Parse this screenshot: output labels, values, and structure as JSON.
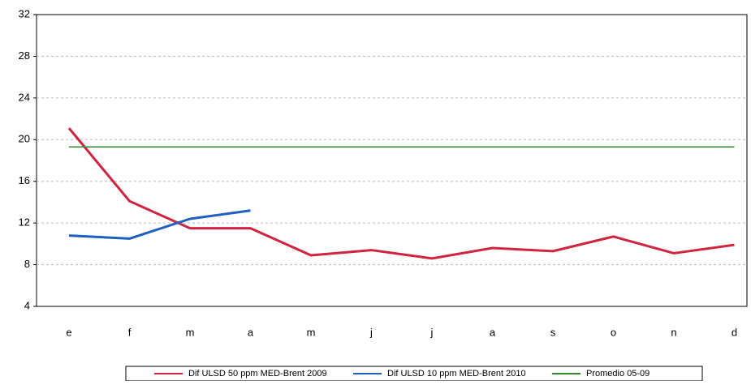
{
  "chart_data": {
    "type": "line",
    "categories": [
      "e",
      "f",
      "m",
      "a",
      "m",
      "j",
      "j",
      "a",
      "s",
      "o",
      "n",
      "d"
    ],
    "series": [
      {
        "name": "Dif ULSD 50 ppm MED-Brent 2009",
        "color": "#d0243f",
        "values": [
          21.1,
          14.1,
          11.5,
          11.5,
          8.9,
          9.4,
          8.6,
          9.6,
          9.3,
          10.7,
          9.1,
          9.9
        ]
      },
      {
        "name": "Dif ULSD 10 ppm MED-Brent 2010",
        "color": "#1f5fbf",
        "values": [
          10.8,
          10.5,
          12.4,
          13.2,
          null,
          null,
          null,
          null,
          null,
          null,
          null,
          null
        ]
      },
      {
        "name": "Promedio 05-09",
        "color": "#2e8b2e",
        "values": [
          19.3,
          19.3,
          19.3,
          19.3,
          19.3,
          19.3,
          19.3,
          19.3,
          19.3,
          19.3,
          19.3,
          19.3
        ]
      }
    ],
    "ylim": [
      4,
      32
    ],
    "yticks": [
      4,
      8,
      12,
      16,
      20,
      24,
      28,
      32
    ],
    "grid": true
  }
}
